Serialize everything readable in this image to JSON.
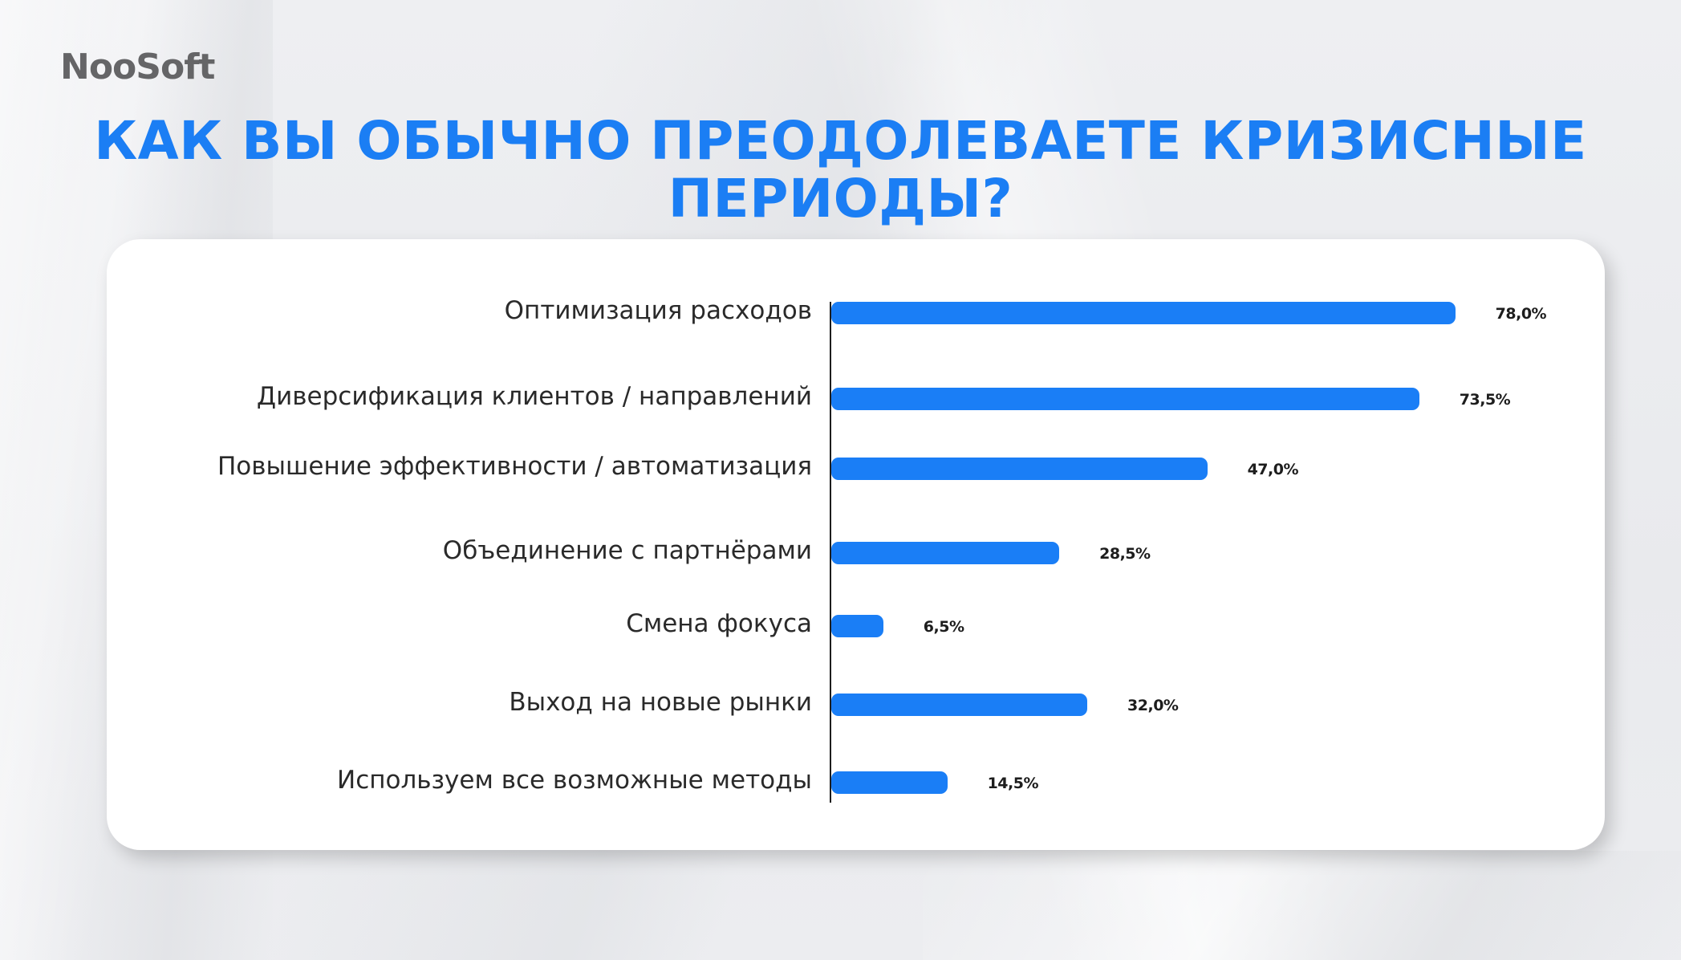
{
  "brand": {
    "logo_text": "NooSoft",
    "accent_color": "#1a7ef6"
  },
  "header": {
    "title_line1": "КАК ВЫ ОБЫЧНО ПРЕОДОЛЕВАЕТЕ КРИЗИСНЫЕ",
    "title_line2": "ПЕРИОДЫ?"
  },
  "chart": {
    "rows": [
      {
        "label": "Оптимизация расходов",
        "value": 78.0,
        "value_label": "78,0%"
      },
      {
        "label": "Диверсификация клиентов / направлений",
        "value": 73.5,
        "value_label": "73,5%"
      },
      {
        "label": "Повышение эффективности / автоматизация",
        "value": 47.0,
        "value_label": "47,0%"
      },
      {
        "label": "Объединение с партнёрами",
        "value": 28.5,
        "value_label": "28,5%"
      },
      {
        "label": "Смена фокуса",
        "value": 6.5,
        "value_label": "6,5%"
      },
      {
        "label": "Выход на новые рынки",
        "value": 32.0,
        "value_label": "32,0%"
      },
      {
        "label": "Используем все возможные методы",
        "value": 14.5,
        "value_label": "14,5%"
      }
    ]
  },
  "chart_data": {
    "type": "bar",
    "orientation": "horizontal",
    "title": "КАК ВЫ ОБЫЧНО ПРЕОДОЛЕВАЕТЕ КРИЗИСНЫЕ ПЕРИОДЫ?",
    "categories": [
      "Оптимизация расходов",
      "Диверсификация клиентов / направлений",
      "Повышение эффективности / автоматизация",
      "Объединение с партнёрами",
      "Смена фокуса",
      "Выход на новые рынки",
      "Используем все возможные методы"
    ],
    "values": [
      78.0,
      73.5,
      47.0,
      28.5,
      6.5,
      32.0,
      14.5
    ],
    "value_labels": [
      "78,0%",
      "73,5%",
      "47,0%",
      "28,5%",
      "6,5%",
      "32,0%",
      "14,5%"
    ],
    "unit": "%",
    "xlabel": "",
    "ylabel": "",
    "grid": false,
    "legend": null,
    "bar_color": "#1a7ef6"
  }
}
